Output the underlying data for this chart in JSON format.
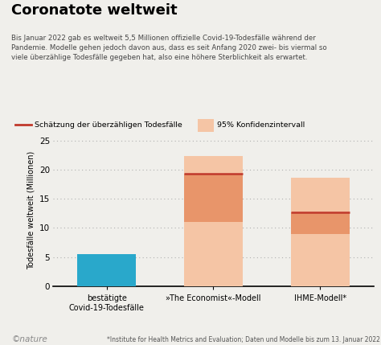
{
  "title": "Coronatote weltweit",
  "subtitle": "Bis Januar 2022 gab es weltweit 5,5 Millionen offizielle Covid-19-Todesfälle während der\nPandemie. Modelle gehen jedoch davon aus, dass es seit Anfang 2020 zwei- bis viermal so\nviele überzählige Todesfälle gegeben hat, also eine höhere Sterblichkeit als erwartet.",
  "ylabel": "Todesfälle weltweit (Millionen)",
  "ylim": [
    0,
    26
  ],
  "yticks": [
    0,
    5,
    10,
    15,
    20,
    25
  ],
  "categories": [
    "bestätigte\nCovid-19-Todesfälle",
    "»The Economist«-Modell",
    "IHME-Modell*"
  ],
  "bar1_value": 5.5,
  "bar1_color": "#29a8cb",
  "bar2_ci_low": 11.0,
  "bar2_estimate": 19.3,
  "bar2_ci_high": 22.3,
  "bar3_ci_low": 9.0,
  "bar3_estimate": 12.7,
  "bar3_ci_high": 18.6,
  "ci_color_light": "#f5c5a5",
  "ci_color_dark": "#e8956a",
  "estimate_color": "#c0392b",
  "legend_line_label": "Schätzung der überzähligen Todesfälle",
  "legend_box_label": "95% Konfidenzintervall",
  "footnote": "*Institute for Health Metrics and Evaluation; Daten und Modelle bis zum 13. Januar 2022",
  "nature_label": "©nature",
  "background_color": "#f0efeb",
  "plot_bg_color": "#f0efeb"
}
